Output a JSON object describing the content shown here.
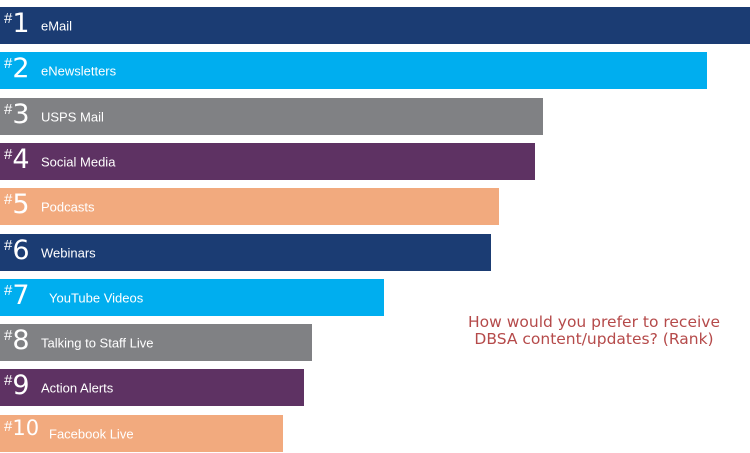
{
  "chart_data": {
    "type": "bar",
    "orientation": "horizontal",
    "title_lines": [
      "How would you prefer to receive",
      "DBSA content/updates? (Rank)"
    ],
    "categories": [
      "eMail",
      "eNewsletters",
      "USPS Mail",
      "Social Media",
      "Podcasts",
      "Webinars",
      "YouTube Videos",
      "Talking to Staff Live",
      "Action Alerts",
      "Facebook Live"
    ],
    "ranks": [
      "1",
      "2",
      "3",
      "4",
      "5",
      "6",
      "7",
      "8",
      "9",
      "10"
    ],
    "rank_prefix": "#",
    "values": [
      100,
      94.3,
      72.4,
      71.3,
      66.5,
      65.5,
      51.2,
      41.6,
      40.5,
      37.7
    ],
    "colors": [
      "#1b3c73",
      "#00aeef",
      "#808184",
      "#5e3263",
      "#f2aa7e",
      "#1b3c73",
      "#00aeef",
      "#808184",
      "#5e3263",
      "#f2aa7e"
    ],
    "xlim": [
      0,
      100
    ],
    "grid": false,
    "legend": "none"
  }
}
